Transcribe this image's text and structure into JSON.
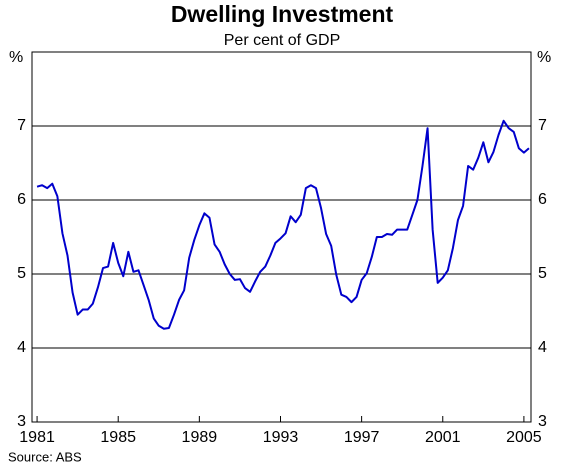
{
  "chart_data": {
    "type": "line",
    "title": "Dwelling Investment",
    "subtitle": "Per cent of GDP",
    "y_label": "%",
    "y2_label": "%",
    "source": "Source: ABS",
    "x": [
      1981,
      1981.25,
      1981.5,
      1981.75,
      1982,
      1982.25,
      1982.5,
      1982.75,
      1983,
      1983.25,
      1983.5,
      1983.75,
      1984,
      1984.25,
      1984.5,
      1984.75,
      1985,
      1985.25,
      1985.5,
      1985.75,
      1986,
      1986.25,
      1986.5,
      1986.75,
      1987,
      1987.25,
      1987.5,
      1987.75,
      1988,
      1988.25,
      1988.5,
      1988.75,
      1989,
      1989.25,
      1989.5,
      1989.75,
      1990,
      1990.25,
      1990.5,
      1990.75,
      1991,
      1991.25,
      1991.5,
      1991.75,
      1992,
      1992.25,
      1992.5,
      1992.75,
      1993,
      1993.25,
      1993.5,
      1993.75,
      1994,
      1994.25,
      1994.5,
      1994.75,
      1995,
      1995.25,
      1995.5,
      1995.75,
      1996,
      1996.25,
      1996.5,
      1996.75,
      1997,
      1997.25,
      1997.5,
      1997.75,
      1998,
      1998.25,
      1998.5,
      1998.75,
      1999,
      1999.25,
      1999.5,
      1999.75,
      2000,
      2000.25,
      2000.5,
      2000.75,
      2001,
      2001.25,
      2001.5,
      2001.75,
      2002,
      2002.25,
      2002.5,
      2002.75,
      2003,
      2003.25,
      2003.5,
      2003.75,
      2004,
      2004.25,
      2004.5,
      2004.75,
      2005,
      2005.25
    ],
    "series": [
      {
        "name": "Dwelling investment",
        "color": "#0000cc",
        "values": [
          6.18,
          6.2,
          6.16,
          6.22,
          6.05,
          5.55,
          5.25,
          4.75,
          4.45,
          4.52,
          4.52,
          4.6,
          4.82,
          5.08,
          5.1,
          5.42,
          5.15,
          4.97,
          5.3,
          5.03,
          5.05,
          4.85,
          4.65,
          4.4,
          4.3,
          4.26,
          4.27,
          4.45,
          4.65,
          4.78,
          5.22,
          5.46,
          5.66,
          5.82,
          5.76,
          5.4,
          5.3,
          5.13,
          5.0,
          4.92,
          4.93,
          4.81,
          4.76,
          4.9,
          5.03,
          5.1,
          5.25,
          5.42,
          5.48,
          5.55,
          5.78,
          5.7,
          5.8,
          6.16,
          6.2,
          6.16,
          5.89,
          5.54,
          5.38,
          4.99,
          4.72,
          4.69,
          4.62,
          4.69,
          4.92,
          5.01,
          5.23,
          5.5,
          5.5,
          5.54,
          5.53,
          5.6,
          5.6,
          5.6,
          5.8,
          6.0,
          6.46,
          6.97,
          5.6,
          4.88,
          4.95,
          5.05,
          5.35,
          5.73,
          5.92,
          6.46,
          6.41,
          6.57,
          6.78,
          6.51,
          6.65,
          6.88,
          7.07,
          6.97,
          6.92,
          6.7,
          6.64,
          6.7
        ]
      }
    ],
    "xlim": [
      1980.75,
      2005.35
    ],
    "xticks": [
      1981,
      1985,
      1989,
      1993,
      1997,
      2001,
      2005
    ],
    "ylim": [
      3,
      8
    ],
    "yticks": [
      3,
      4,
      5,
      6,
      7
    ],
    "y2lim": [
      3,
      8
    ],
    "y2ticks": [
      3,
      4,
      5,
      6,
      7
    ],
    "grid": true
  }
}
